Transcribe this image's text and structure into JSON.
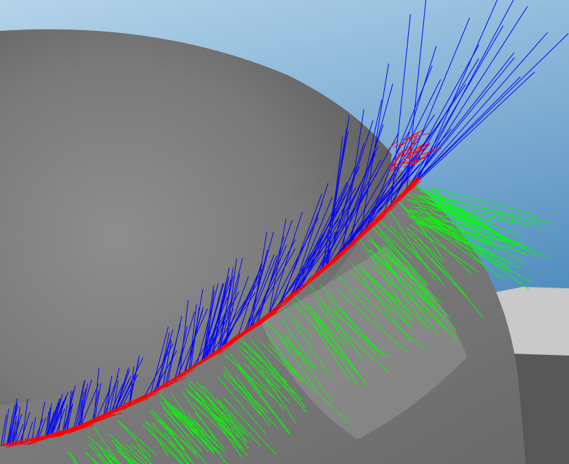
{
  "scene": {
    "sky_top": "#b4d4ea",
    "sky_bottom": "#3f7fb4",
    "mesh_color": "#7a7a7a",
    "mesh_dark": "#555555",
    "rock_light": "#c8c8c8"
  },
  "vectors": {
    "tangent_color": "#ff0000",
    "binormal_color": "#0000ff",
    "normal_color": "#00ff00"
  }
}
